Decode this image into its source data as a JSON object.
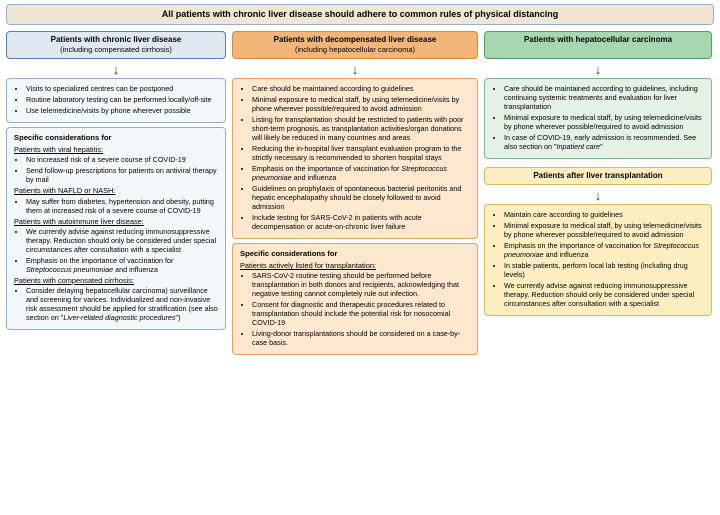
{
  "colors": {
    "header_bg": "#f1e6d4",
    "blue_bg": "#dfe8f0",
    "blue_border": "#5a7ca8",
    "blue_light_bg": "#f5f8fb",
    "blue_light_border": "#96aecb",
    "orange_bg": "#f3b679",
    "orange_border": "#d88a3a",
    "orange_light_bg": "#fde7cf",
    "orange_light_border": "#e0a25e",
    "green_bg": "#a7d7b0",
    "green_border": "#4f9e63",
    "green_light_bg": "#e4f2e6",
    "green_light_border": "#7cb98a",
    "yellow_bg": "#fdeec2",
    "yellow_border": "#d8b85e"
  },
  "header": "All patients with chronic liver disease should adhere to common rules of physical distancing",
  "colA": {
    "title": "Patients with chronic liver disease",
    "subtitle": "(including compensated cirrhosis)",
    "bullets": [
      "Visits to specialized centres can be postponed",
      "Routine laboratory testing can be performed locally/off-site",
      "Use telemedicine/visits by phone wherever possible"
    ],
    "sc_title": "Specific considerations for",
    "g1_title": "Patients with viral hepatitis:",
    "g1": [
      "No increased risk of a severe course of COVID-19",
      "Send follow-up prescriptions for patients on antiviral therapy by mail"
    ],
    "g2_title": "Patients with NAFLD or NASH:",
    "g2": [
      "May suffer from diabetes, hypertension and obesity, putting them at increased risk of a severe course of COVID-19"
    ],
    "g3_title": "Patients with autoimmune liver disease:",
    "g3": [
      "We currently advise against reducing immunosuppressive therapy. Reduction should only be considered under special circumstances after consultation with a specialist",
      "Emphasis on the importance of vaccination for <em>Streptococcus pneumoniae</em> and influenza"
    ],
    "g4_title": "Patients with compensated cirrhosis:",
    "g4": [
      "Consider delaying hepatocellular carcinoma) surveillance and screening for varices. Individualized and non-invasive risk assessment should be applied for stratification (see also section on \"<em>Liver-related diagnostic procedures</em>\")"
    ]
  },
  "colB": {
    "title": "Patients with decompensated liver disease",
    "subtitle": "(including hepatocellular carcinoma)",
    "bullets": [
      "Care should be maintained according to guidelines",
      "Minimal exposure to medical staff, by using telemedicine/visits by phone wherever possible/required to avoid admission",
      "Listing for transplantation should be restricted to patients with poor short-term prognosis, as transplantation activities/organ donations will likely be reduced in many countries and areas",
      "Reducing the in-hospital liver transplant evaluation program to the strictly necessary is recommended to shorten hospital stays",
      "Emphasis on the importance of vaccination for <em>Streptococcus pneumoniae</em> and influenza",
      "Guidelines on prophylaxis of spontaneous bacterial peritonitis and hepatic encephalopathy should be closely followed to avoid admission",
      "Include testing for SARS-CoV-2 in patients with acute decompensation or acute-on-chronic liver failure"
    ],
    "sc_title": "Specific considerations for",
    "g1_title": "Patients actively listed for transplantation:",
    "g1": [
      "SARS-CoV-2 routine testing should be performed before transplantation in both donors and recipients, acknowledging that negative testing cannot completely rule out infection.",
      "Consent for diagnostic and therapeutic procedures related to transplantation should include the potential risk for nosocomial COVID-19",
      "Living-donor transplantations should be considered on a case-by-case basis."
    ]
  },
  "colC": {
    "title": "Patients with hepatocellular carcinoma",
    "bullets": [
      "Care should be maintained according to guidelines, including continuing systemic treatments and evaluation for liver transplantation",
      "Minimal exposure to medical staff, by using telemedicine/visits by phone wherever possible/required to avoid admission",
      "In case of COVID-19, early admission is recommended. See also section on \"<em>Inpatient care</em>\""
    ],
    "box2_title": "Patients after liver transplantation",
    "box2_bullets": [
      "Maintain care according to guidelines",
      "Minimal exposure to medical staff, by using telemedicine/visits by phone wherever possible/required to avoid admission",
      "Emphasis on the importance of vaccination for <em>Streptococcus pneumoniae</em> and influenza",
      "In stable patients, perform local lab testing (including drug levels)",
      "We currently advise against reducing immunosuppressive therapy. Reduction should only be considered under special circumstances after consultation with a specialist"
    ]
  }
}
